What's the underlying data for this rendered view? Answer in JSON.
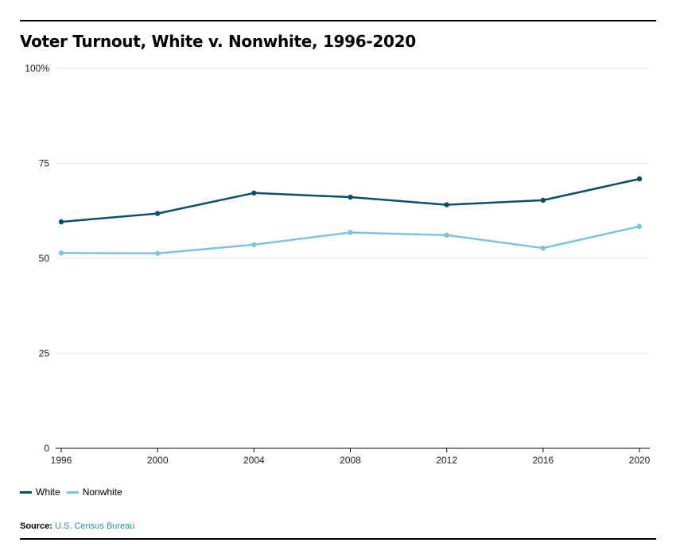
{
  "title": "Voter Turnout, White v. Nonwhite, 1996-2020",
  "source": {
    "label": "Source:",
    "text": "U.S. Census Bureau"
  },
  "colors": {
    "white": "#0c4f68",
    "nonwhite": "#7dc4dc",
    "grid": "#e6e6e6",
    "axis": "#000000"
  },
  "chart_data": {
    "type": "line",
    "title": "Voter Turnout, White v. Nonwhite, 1996-2020",
    "xlabel": "",
    "ylabel": "",
    "x": [
      1996,
      2000,
      2004,
      2008,
      2012,
      2016,
      2020
    ],
    "x_tick_labels": [
      "1996",
      "2000",
      "2004",
      "2008",
      "2012",
      "2016",
      "2020"
    ],
    "ylim": [
      0,
      100
    ],
    "y_ticks": [
      0,
      25,
      50,
      75,
      100
    ],
    "y_tick_labels": [
      "0",
      "25",
      "50",
      "75",
      "100%"
    ],
    "grid": true,
    "legend_position": "bottom-left",
    "series": [
      {
        "name": "White",
        "color": "#0c4f68",
        "values": [
          59.6,
          61.8,
          67.2,
          66.1,
          64.1,
          65.3,
          70.9
        ]
      },
      {
        "name": "Nonwhite",
        "color": "#7dc4dc",
        "values": [
          51.4,
          51.3,
          53.6,
          56.8,
          56.1,
          52.7,
          58.4
        ]
      }
    ]
  }
}
